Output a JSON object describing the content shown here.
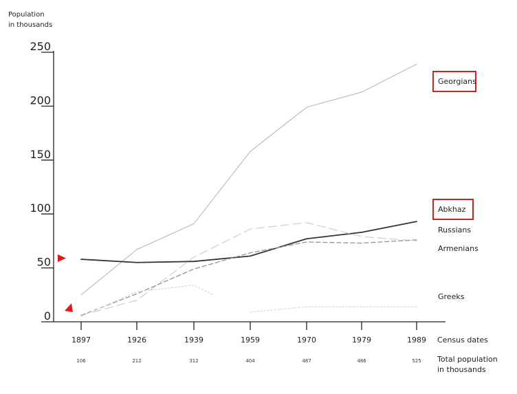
{
  "chart_data": {
    "type": "line",
    "ylabel": "Population in thousands",
    "ylabel_lines": [
      "Population",
      "in thousands"
    ],
    "xlabel": "Census dates",
    "ylim": [
      0,
      250
    ],
    "yticks": [
      0,
      50,
      100,
      150,
      200,
      250
    ],
    "x": [
      "1897",
      "1926",
      "1939",
      "1959",
      "1970",
      "1979",
      "1989"
    ],
    "total_population_label": [
      "Total population",
      "in thousands"
    ],
    "total_population": [
      106,
      212,
      312,
      404,
      487,
      486,
      525
    ],
    "series": [
      {
        "name": "Georgians",
        "color": "#bdbdbd",
        "dash": "solid",
        "highlight": true,
        "values": [
          25,
          67,
          91,
          158,
          199,
          213,
          239
        ]
      },
      {
        "name": "Abkhaz",
        "color": "#333333",
        "dash": "solid",
        "highlight": true,
        "values": [
          58,
          55,
          56,
          61,
          77,
          83,
          93
        ]
      },
      {
        "name": "Russians",
        "color": "#cfcfcf",
        "dash": "long-dash",
        "highlight": false,
        "values": [
          6,
          20,
          60,
          86,
          92,
          79,
          75
        ]
      },
      {
        "name": "Armenians",
        "color": "#9a9a9a",
        "dash": "dash",
        "highlight": false,
        "values": [
          6,
          26,
          49,
          64,
          74,
          73,
          76
        ]
      },
      {
        "name": "Greeks",
        "color": "#dcdcdc",
        "dash": "dot",
        "highlight": false,
        "values": [
          5,
          28,
          34,
          9,
          14,
          14,
          14
        ],
        "note": "line interrupted between 1939 and 1959"
      }
    ],
    "markers_color": "#e01b1b"
  }
}
